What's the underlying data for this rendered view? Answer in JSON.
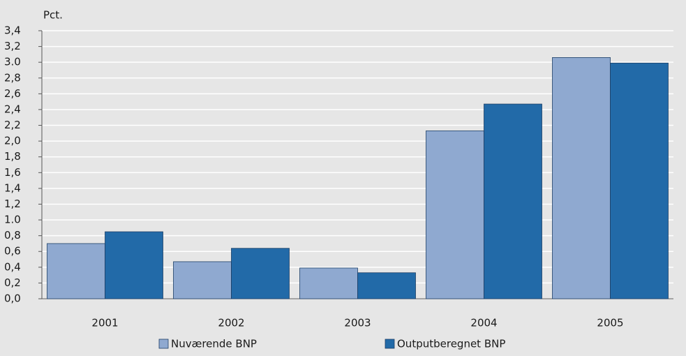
{
  "chart_data": {
    "type": "bar",
    "y_label": "Pct.",
    "categories": [
      "2001",
      "2002",
      "2003",
      "2004",
      "2005"
    ],
    "series": [
      {
        "name": "Nuværende BNP",
        "color": "#8fa9d0",
        "values": [
          0.7,
          0.47,
          0.39,
          2.13,
          3.06
        ]
      },
      {
        "name": "Outputberegnet BNP",
        "color": "#226aa8",
        "values": [
          0.85,
          0.64,
          0.33,
          2.47,
          2.99
        ]
      }
    ],
    "ylim": [
      0,
      3.4
    ],
    "yticks": [
      {
        "value": 0,
        "label": "0,0"
      },
      {
        "value": 0.2,
        "label": "0,2"
      },
      {
        "value": 0.4,
        "label": "0,4"
      },
      {
        "value": 0.6,
        "label": "0,6"
      },
      {
        "value": 0.8,
        "label": "0,8"
      },
      {
        "value": 1.0,
        "label": "1.0"
      },
      {
        "value": 1.2,
        "label": "1,2"
      },
      {
        "value": 1.4,
        "label": "1,4"
      },
      {
        "value": 1.6,
        "label": "1,6"
      },
      {
        "value": 1.8,
        "label": "1,8"
      },
      {
        "value": 2.0,
        "label": "2,0"
      },
      {
        "value": 2.2,
        "label": "2,2"
      },
      {
        "value": 2.4,
        "label": "2,4"
      },
      {
        "value": 2.6,
        "label": "2,6"
      },
      {
        "value": 2.8,
        "label": "2,8"
      },
      {
        "value": 3.0,
        "label": "3.0"
      },
      {
        "value": 3.2,
        "label": "3,2"
      },
      {
        "value": 3.4,
        "label": "3,4"
      }
    ],
    "grid": true
  }
}
